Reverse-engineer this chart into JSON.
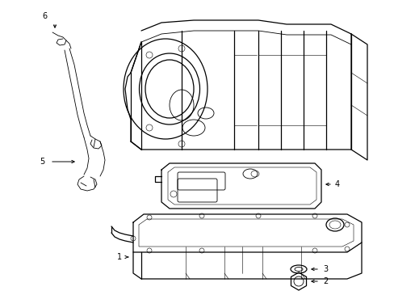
{
  "background_color": "#ffffff",
  "line_color": "#000000",
  "figsize": [
    4.89,
    3.6
  ],
  "dpi": 100,
  "lw_main": 0.9,
  "lw_detail": 0.6,
  "lw_thin": 0.4
}
